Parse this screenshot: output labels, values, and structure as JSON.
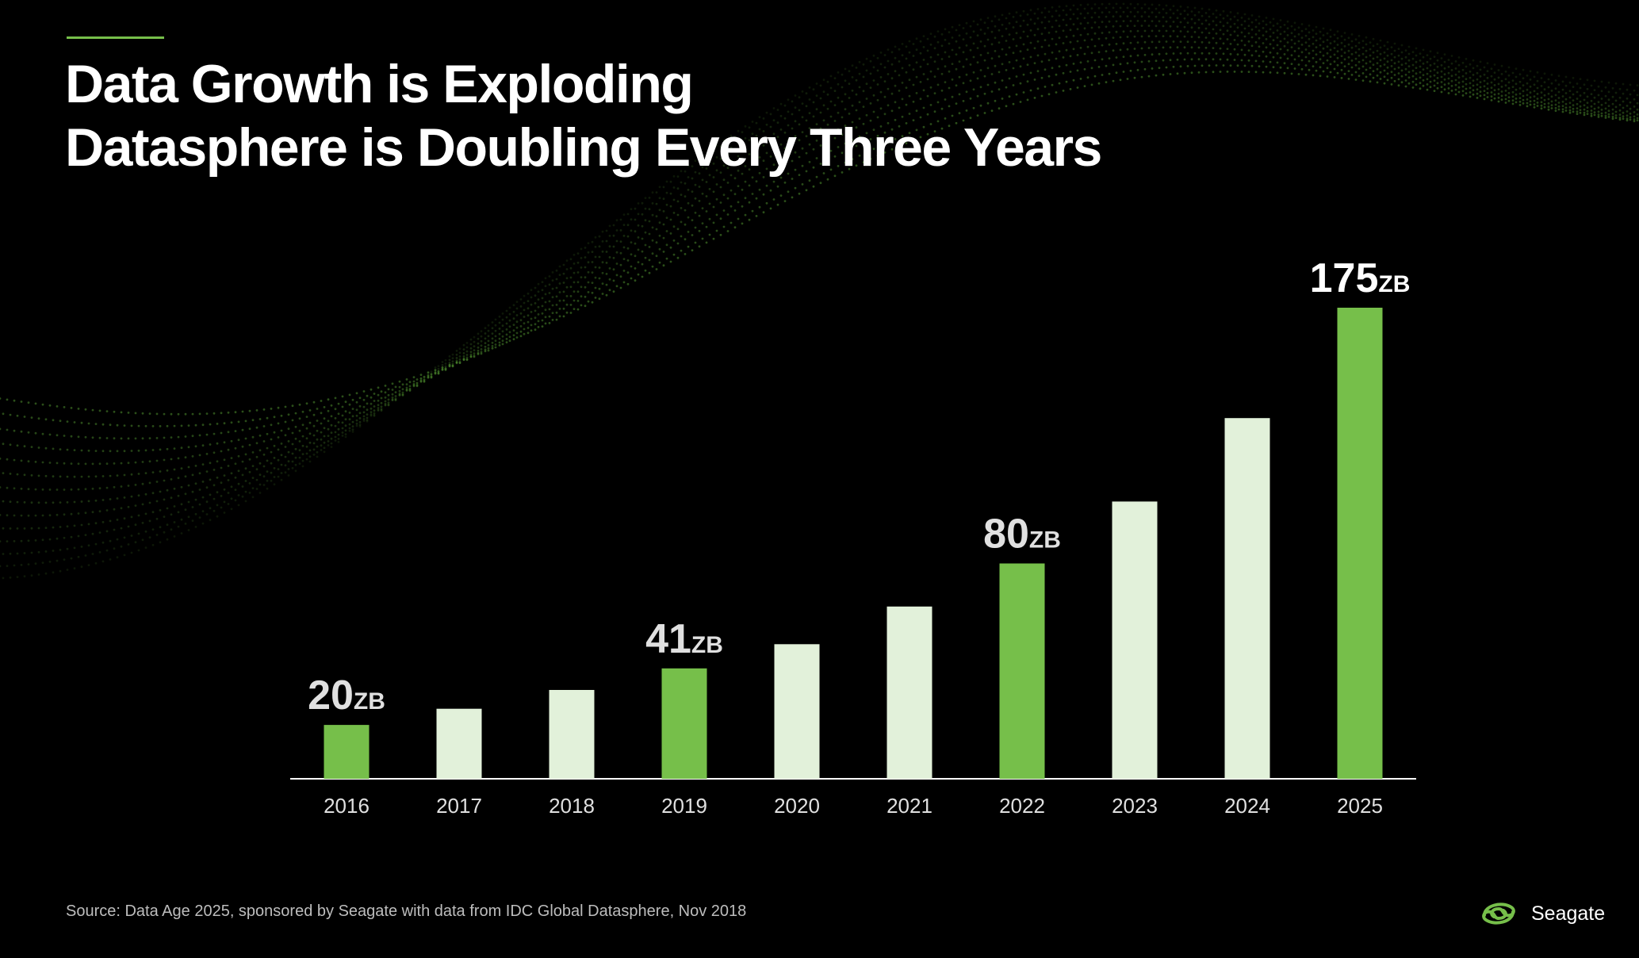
{
  "slide": {
    "title_line1": "Data Growth is Exploding",
    "title_line2": "Datasphere is Doubling Every Three Years",
    "source": "Source: Data Age 2025, sponsored by Seagate with data from IDC Global Datasphere, Nov 2018",
    "brand_name": "Seagate",
    "logo_icon": "seagate-swirl-icon"
  },
  "colors": {
    "background": "#000000",
    "highlight_bar": "#76bf4a",
    "regular_bar": "#e2f1da",
    "accent": "#76bf4a",
    "axis": "#ffffff",
    "label": "#e0e0e0",
    "wave": "#4e8f2e"
  },
  "chart_data": {
    "type": "bar",
    "title": "",
    "xlabel": "",
    "ylabel": "",
    "unit": "ZB",
    "ylim": [
      0,
      175
    ],
    "grid": false,
    "categories": [
      "2016",
      "2017",
      "2018",
      "2019",
      "2020",
      "2021",
      "2022",
      "2023",
      "2024",
      "2025"
    ],
    "values": [
      20,
      26,
      33,
      41,
      50,
      64,
      80,
      103,
      134,
      175
    ],
    "highlighted": [
      "2016",
      "2019",
      "2022",
      "2025"
    ],
    "data_labels": [
      {
        "category": "2016",
        "value": "20",
        "unit": "ZB"
      },
      {
        "category": "2019",
        "value": "41",
        "unit": "ZB"
      },
      {
        "category": "2022",
        "value": "80",
        "unit": "ZB"
      },
      {
        "category": "2025",
        "value": "175",
        "unit": "ZB"
      }
    ]
  }
}
